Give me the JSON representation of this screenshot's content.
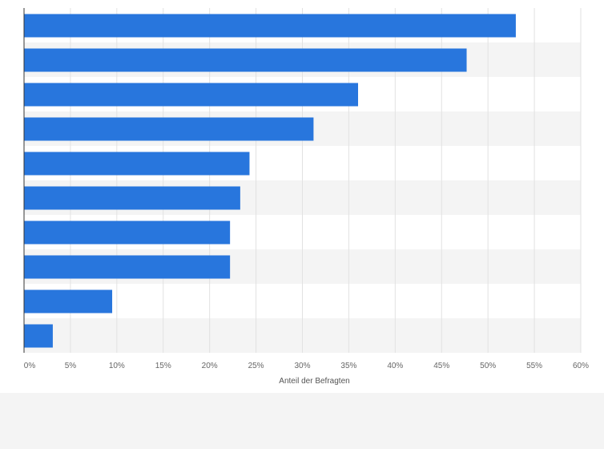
{
  "chart_data": {
    "type": "bar",
    "orientation": "horizontal",
    "categories": [
      "",
      "",
      "",
      "",
      "",
      "",
      "",
      "",
      "",
      ""
    ],
    "values": [
      53,
      47.7,
      36,
      31.2,
      24.3,
      23.3,
      22.2,
      22.2,
      9.5,
      3.1
    ],
    "unit": "%",
    "xlabel": "Anteil der Befragten",
    "xlim": [
      0,
      60
    ],
    "xticks": [
      "0%",
      "5%",
      "10%",
      "15%",
      "20%",
      "25%",
      "30%",
      "35%",
      "40%",
      "45%",
      "50%",
      "55%",
      "60%"
    ],
    "grid": true,
    "legend": "none",
    "colors": {
      "bar": "#2876dd",
      "band_a": "#ffffff",
      "band_b": "#f4f4f4",
      "grid": "#e2e2e2",
      "axis": "#333333"
    }
  }
}
